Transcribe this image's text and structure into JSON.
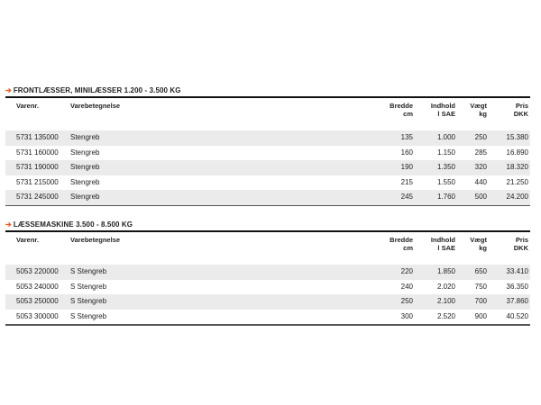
{
  "columns": {
    "varenr": "Varenr.",
    "varebetegnelse": "Varebetegnelse",
    "bredde": [
      "Bredde",
      "cm"
    ],
    "indhold": [
      "Indhold",
      "l SAE"
    ],
    "vaegt": [
      "Vægt",
      "kg"
    ],
    "pris": [
      "Pris",
      "DKK"
    ]
  },
  "accent_color": "#e8561c",
  "sections": [
    {
      "title": "FRONTLÆSSER, MINILÆSSER 1.200 - 3.500 KG",
      "rows": [
        [
          "5731 135000",
          "Stengreb",
          "135",
          "1.000",
          "250",
          "15.380"
        ],
        [
          "5731 160000",
          "Stengreb",
          "160",
          "1.150",
          "285",
          "16.890"
        ],
        [
          "5731 190000",
          "Stengreb",
          "190",
          "1.350",
          "320",
          "18.320"
        ],
        [
          "5731 215000",
          "Stengreb",
          "215",
          "1.550",
          "440",
          "21.250"
        ],
        [
          "5731 245000",
          "Stengreb",
          "245",
          "1.760",
          "500",
          "24.200"
        ]
      ]
    },
    {
      "title": "LÆSSEMASKINE 3.500  - 8.500 KG",
      "rows": [
        [
          "5053 220000",
          "S Stengreb",
          "220",
          "1.850",
          "650",
          "33.410"
        ],
        [
          "5053 240000",
          "S Stengreb",
          "240",
          "2.020",
          "750",
          "36.350"
        ],
        [
          "5053 250000",
          "S Stengreb",
          "250",
          "2.100",
          "700",
          "37.860"
        ],
        [
          "5053 300000",
          "S Stengreb",
          "300",
          "2.520",
          "900",
          "40.520"
        ]
      ]
    }
  ]
}
